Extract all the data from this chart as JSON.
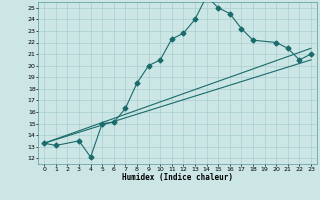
{
  "xlabel": "Humidex (Indice chaleur)",
  "bg_color": "#cce5e5",
  "grid_color": "#aacfcf",
  "line_color": "#1a6b6b",
  "xlim": [
    -0.5,
    23.5
  ],
  "ylim": [
    11.5,
    25.5
  ],
  "xticks": [
    0,
    1,
    2,
    3,
    4,
    5,
    6,
    7,
    8,
    9,
    10,
    11,
    12,
    13,
    14,
    15,
    16,
    17,
    18,
    19,
    20,
    21,
    22,
    23
  ],
  "yticks": [
    12,
    13,
    14,
    15,
    16,
    17,
    18,
    19,
    20,
    21,
    22,
    23,
    24,
    25
  ],
  "line1_x": [
    0,
    1,
    3,
    4,
    5,
    6,
    7,
    8,
    9,
    10,
    11,
    12,
    13,
    14,
    15,
    16,
    17,
    18,
    20,
    21,
    22,
    23
  ],
  "line1_y": [
    13.3,
    13.1,
    13.5,
    12.1,
    15.0,
    15.1,
    16.3,
    18.5,
    20.0,
    20.5,
    22.3,
    22.8,
    24.0,
    26.0,
    25.0,
    24.5,
    23.2,
    22.2,
    22.0,
    21.5,
    20.5,
    21.0
  ],
  "line2_x": [
    0,
    23
  ],
  "line2_y": [
    13.3,
    21.5
  ],
  "line3_x": [
    0,
    23
  ],
  "line3_y": [
    13.3,
    20.5
  ],
  "markersize": 2.5
}
